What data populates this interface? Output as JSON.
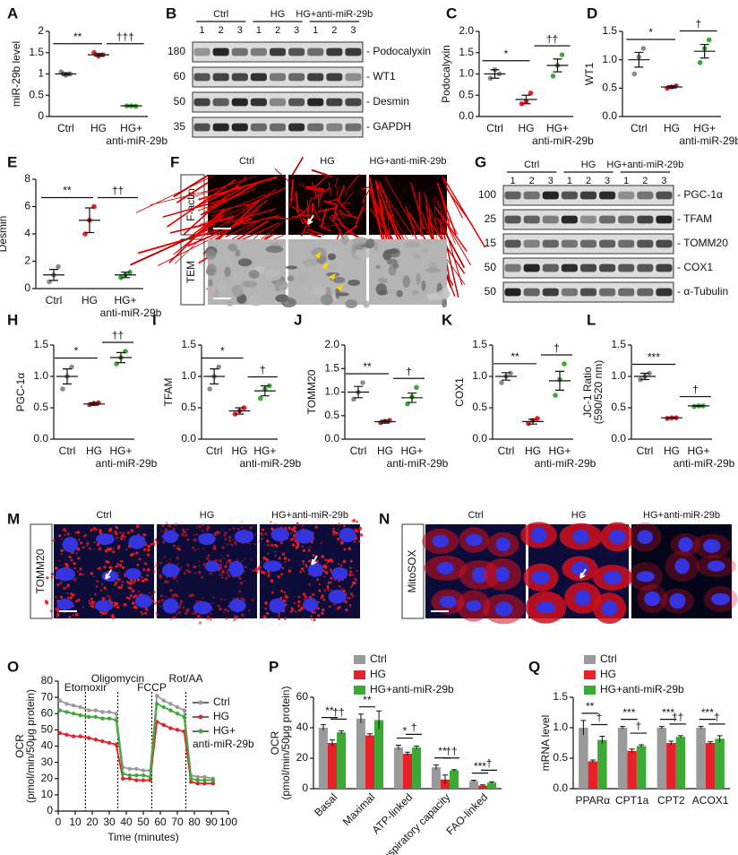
{
  "figure": {
    "B": {
      "panel": "B",
      "groups": [
        "Ctrl",
        "HG",
        "HG+anti-miR-29b"
      ],
      "lanes": [
        "1",
        "2",
        "3"
      ],
      "rows": [
        {
          "mw": "180",
          "label": "- Podocalyxin"
        },
        {
          "mw": "60",
          "label": "- WT1"
        },
        {
          "mw": "50",
          "label": "- Desmin"
        },
        {
          "mw": "35",
          "label": "- GAPDH"
        }
      ]
    },
    "F": {
      "panel": "F",
      "columns": [
        "Ctrl",
        "HG",
        "HG+anti-miR-29b"
      ],
      "rows": [
        "F-actin",
        "TEM"
      ]
    },
    "G": {
      "panel": "G",
      "groups": [
        "Ctrl",
        "HG",
        "HG+anti-miR-29b"
      ],
      "lanes": [
        "1",
        "2",
        "3"
      ],
      "rows": [
        {
          "mw": "100",
          "label": "- PGC-1α"
        },
        {
          "mw": "25",
          "label": "- TFAM"
        },
        {
          "mw": "15",
          "label": "- TOMM20"
        },
        {
          "mw": "50",
          "label": "- COX1"
        },
        {
          "mw": "50",
          "label": "- α-Tubulin"
        }
      ]
    },
    "M": {
      "panel": "M",
      "columns": [
        "Ctrl",
        "HG",
        "HG+anti-miR-29b"
      ],
      "rows": [
        "TOMM20"
      ]
    },
    "N": {
      "panel": "N",
      "columns": [
        "Ctrl",
        "HG",
        "HG+anti-miR-29b"
      ],
      "rows": [
        "MitoSOX"
      ]
    }
  },
  "chart_data": [
    {
      "panel": "A",
      "type": "dot",
      "ylabel": "miR-29b level",
      "categories": [
        "Ctrl",
        "HG",
        "HG+"
      ],
      "xlabel2": "anti-miR-29b",
      "groups": [
        {
          "color": "#8c8c8c",
          "values": [
            1.05,
            0.97,
            1.0
          ],
          "mean": 1.0,
          "sem": 0.03
        },
        {
          "color": "#e8202a",
          "values": [
            1.5,
            1.42,
            1.45
          ],
          "mean": 1.45,
          "sem": 0.03
        },
        {
          "color": "#3aaa35",
          "values": [
            0.25,
            0.25,
            0.24
          ],
          "mean": 0.25,
          "sem": 0.005
        }
      ],
      "ylim": [
        0,
        2
      ],
      "yticks": [
        0,
        0.5,
        1,
        1.5,
        2
      ],
      "annotations": [
        "**",
        "†††"
      ]
    },
    {
      "panel": "C",
      "type": "dot",
      "ylabel": "Podocalyxin",
      "categories": [
        "Ctrl",
        "HG",
        "HG+"
      ],
      "xlabel2": "anti-miR-29b",
      "groups": [
        {
          "color": "#8c8c8c",
          "values": [
            0.9,
            1.1,
            1.0
          ],
          "mean": 1.0,
          "sem": 0.1
        },
        {
          "color": "#e8202a",
          "values": [
            0.3,
            0.35,
            0.55
          ],
          "mean": 0.4,
          "sem": 0.1
        },
        {
          "color": "#3aaa35",
          "values": [
            0.95,
            1.2,
            1.45
          ],
          "mean": 1.2,
          "sem": 0.15
        }
      ],
      "ylim": [
        0,
        2
      ],
      "yticks": [
        {
          "value": 0,
          "label": "0.0"
        },
        0.5,
        {
          "value": 1,
          "label": "1.0"
        },
        1.5,
        {
          "value": 2,
          "label": "2.0"
        }
      ],
      "annotations": [
        "*",
        "††"
      ]
    },
    {
      "panel": "D",
      "type": "dot",
      "ylabel": "WT1",
      "categories": [
        "Ctrl",
        "HG",
        "HG+"
      ],
      "xlabel2": "anti-miR-29b",
      "groups": [
        {
          "color": "#8c8c8c",
          "values": [
            0.75,
            1.05,
            1.2
          ],
          "mean": 1.0,
          "sem": 0.13
        },
        {
          "color": "#e8202a",
          "values": [
            0.5,
            0.52,
            0.54
          ],
          "mean": 0.52,
          "sem": 0.02
        },
        {
          "color": "#3aaa35",
          "values": [
            0.95,
            1.2,
            1.35
          ],
          "mean": 1.15,
          "sem": 0.12
        }
      ],
      "ylim": [
        0,
        1.5
      ],
      "yticks": [
        {
          "value": 0,
          "label": "0.0"
        },
        0.5,
        {
          "value": 1,
          "label": "1.0"
        },
        1.5
      ],
      "annotations": [
        "*",
        "†"
      ]
    },
    {
      "panel": "E",
      "type": "dot",
      "ylabel": "Desmin",
      "categories": [
        "Ctrl",
        "HG",
        "HG+"
      ],
      "xlabel2": "anti-miR-29b",
      "groups": [
        {
          "color": "#8c8c8c",
          "values": [
            0.5,
            1.0,
            1.6
          ],
          "mean": 1.0,
          "sem": 0.4
        },
        {
          "color": "#e8202a",
          "values": [
            4.0,
            5.0,
            6.0
          ],
          "mean": 5.0,
          "sem": 0.9
        },
        {
          "color": "#3aaa35",
          "values": [
            0.8,
            1.0,
            1.2
          ],
          "mean": 1.0,
          "sem": 0.2
        }
      ],
      "ylim": [
        0,
        8
      ],
      "yticks": [
        0,
        2,
        4,
        6,
        8
      ],
      "annotations": [
        "**",
        "††"
      ]
    },
    {
      "panel": "H",
      "type": "dot",
      "ylabel": "PGC-1α",
      "categories": [
        "Ctrl",
        "HG",
        "HG+"
      ],
      "xlabel2": "anti-miR-29b",
      "groups": [
        {
          "color": "#8c8c8c",
          "values": [
            0.8,
            1.0,
            1.15
          ],
          "mean": 1.0,
          "sem": 0.12
        },
        {
          "color": "#e8202a",
          "values": [
            0.55,
            0.57,
            0.58
          ],
          "mean": 0.56,
          "sem": 0.02
        },
        {
          "color": "#3aaa35",
          "values": [
            1.2,
            1.3,
            1.4
          ],
          "mean": 1.3,
          "sem": 0.08
        }
      ],
      "ylim": [
        0,
        1.5
      ],
      "yticks": [
        {
          "value": 0,
          "label": "0.0"
        },
        0.5,
        {
          "value": 1,
          "label": "1.0"
        },
        1.5
      ],
      "annotations": [
        "*",
        "††"
      ]
    },
    {
      "panel": "I",
      "type": "dot",
      "ylabel": "TFAM",
      "categories": [
        "Ctrl",
        "HG",
        "HG+"
      ],
      "xlabel2": "anti-miR-29b",
      "groups": [
        {
          "color": "#8c8c8c",
          "values": [
            0.8,
            1.0,
            1.15
          ],
          "mean": 1.0,
          "sem": 0.12
        },
        {
          "color": "#e8202a",
          "values": [
            0.4,
            0.45,
            0.5
          ],
          "mean": 0.45,
          "sem": 0.05
        },
        {
          "color": "#3aaa35",
          "values": [
            0.65,
            0.8,
            0.85
          ],
          "mean": 0.77,
          "sem": 0.08
        }
      ],
      "ylim": [
        0,
        1.5
      ],
      "yticks": [
        {
          "value": 0,
          "label": "0.0"
        },
        0.5,
        {
          "value": 1,
          "label": "1.0"
        },
        1.5
      ],
      "annotations": [
        "*",
        "†"
      ]
    },
    {
      "panel": "J",
      "type": "dot",
      "ylabel": "TOMM20",
      "categories": [
        "Ctrl",
        "HG",
        "HG+"
      ],
      "xlabel2": "anti-miR-29b",
      "groups": [
        {
          "color": "#8c8c8c",
          "values": [
            0.85,
            1.0,
            1.2
          ],
          "mean": 1.0,
          "sem": 0.12
        },
        {
          "color": "#e8202a",
          "values": [
            0.35,
            0.38,
            0.4
          ],
          "mean": 0.37,
          "sem": 0.03
        },
        {
          "color": "#3aaa35",
          "values": [
            0.75,
            0.9,
            1.1
          ],
          "mean": 0.88,
          "sem": 0.1
        }
      ],
      "ylim": [
        0,
        2
      ],
      "yticks": [
        {
          "value": 0,
          "label": "0.0"
        },
        0.5,
        {
          "value": 1,
          "label": "1.0"
        },
        1.5,
        {
          "value": 2,
          "label": "2.0"
        }
      ],
      "annotations": [
        "**",
        "†"
      ]
    },
    {
      "panel": "K",
      "type": "dot",
      "ylabel": "COX1",
      "categories": [
        "Ctrl",
        "HG",
        "HG+"
      ],
      "xlabel2": "anti-miR-29b",
      "groups": [
        {
          "color": "#8c8c8c",
          "values": [
            0.9,
            1.0,
            1.05
          ],
          "mean": 1.0,
          "sem": 0.06
        },
        {
          "color": "#e8202a",
          "values": [
            0.25,
            0.3,
            0.33
          ],
          "mean": 0.28,
          "sem": 0.04
        },
        {
          "color": "#3aaa35",
          "values": [
            0.7,
            0.95,
            1.2
          ],
          "mean": 0.93,
          "sem": 0.15
        }
      ],
      "ylim": [
        0,
        1.5
      ],
      "yticks": [
        {
          "value": 0,
          "label": "0.0"
        },
        0.5,
        {
          "value": 1,
          "label": "1.0"
        },
        1.5
      ],
      "annotations": [
        "**",
        "†"
      ]
    },
    {
      "panel": "L",
      "type": "dot",
      "ylabel": "JC-1 Ratio",
      "ylabel2": "(590/520 nm)",
      "categories": [
        "Ctrl",
        "HG",
        "HG+"
      ],
      "xlabel2": "anti-miR-29b",
      "groups": [
        {
          "color": "#8c8c8c",
          "values": [
            0.95,
            1.0,
            1.05
          ],
          "mean": 1.0,
          "sem": 0.05
        },
        {
          "color": "#e8202a",
          "values": [
            0.33,
            0.34,
            0.34
          ],
          "mean": 0.34,
          "sem": 0.005
        },
        {
          "color": "#3aaa35",
          "values": [
            0.52,
            0.53,
            0.53
          ],
          "mean": 0.53,
          "sem": 0.005
        }
      ],
      "ylim": [
        0,
        1.5
      ],
      "yticks": [
        {
          "value": 0,
          "label": "0.0"
        },
        0.5,
        {
          "value": 1,
          "label": "1.0"
        },
        1.5
      ],
      "annotations": [
        "***",
        "†"
      ]
    },
    {
      "panel": "O",
      "type": "line",
      "ylabel": "OCR",
      "ylabel2": "(pmol/min/50μg protein)",
      "xlabel": "Time (minutes)",
      "x": [
        1,
        5,
        9,
        13,
        18,
        22,
        26,
        30,
        34,
        38,
        42,
        46,
        50,
        54,
        58,
        62,
        66,
        70,
        74,
        78,
        82,
        86,
        91
      ],
      "series": [
        {
          "name": "Ctrl",
          "color": "#999999",
          "values": [
            68,
            66,
            65,
            64,
            62,
            62,
            61,
            61,
            60,
            27,
            26,
            26,
            25,
            25,
            71,
            68,
            66,
            64,
            62,
            22,
            21,
            21,
            20
          ]
        },
        {
          "name": "HG",
          "color": "#e8202a",
          "values": [
            48,
            47,
            46,
            46,
            45,
            44,
            43,
            42,
            41,
            20,
            20,
            19,
            19,
            19,
            55,
            53,
            51,
            50,
            49,
            18,
            17,
            17,
            17
          ]
        },
        {
          "name": "HG+",
          "color": "#3aaa35",
          "values": [
            62,
            61,
            60,
            59,
            58,
            58,
            57,
            57,
            56,
            23,
            22,
            22,
            22,
            21,
            66,
            64,
            62,
            60,
            58,
            20,
            19,
            19,
            19
          ]
        }
      ],
      "legend_line2": "anti-miR-29b",
      "events": [
        {
          "x": 16,
          "label": "Etomoxir"
        },
        {
          "x": 35,
          "label": "Oligomycin"
        },
        {
          "x": 55,
          "label": "FCCP"
        },
        {
          "x": 75,
          "label": "Rot/AA"
        }
      ],
      "xlim": [
        0,
        100
      ],
      "xticks": [
        0,
        10,
        20,
        30,
        40,
        50,
        60,
        70,
        80,
        90,
        100
      ],
      "ylim": [
        0,
        80
      ],
      "yticks": [
        0,
        10,
        20,
        30,
        40,
        50,
        60,
        70,
        80
      ]
    },
    {
      "panel": "P",
      "type": "bar",
      "ylabel": "OCR",
      "ylabel2": "(pmol/min/50μg protein)",
      "categories": [
        "Basal",
        "Maximal",
        "ATP-linked",
        "Spare respiratory capacity",
        "FAO-linked"
      ],
      "xtick_rotation": 45,
      "series": [
        {
          "name": "Ctrl",
          "color": "#9a9a9a",
          "values": [
            40,
            46,
            27,
            14,
            5
          ],
          "errors": [
            2,
            3,
            1.5,
            1.5,
            0.5
          ]
        },
        {
          "name": "HG",
          "color": "#e8202a",
          "values": [
            30,
            35,
            23,
            6,
            2
          ],
          "errors": [
            2,
            1,
            1,
            3,
            0.5
          ]
        },
        {
          "name": "HG+anti-miR-29b",
          "color": "#3aaa35",
          "values": [
            37,
            45,
            27,
            12,
            4
          ],
          "errors": [
            1,
            6,
            1,
            0.5,
            0.5
          ]
        }
      ],
      "legend": "upper right",
      "annotations": [
        {
          "category": 0,
          "between": [
            0,
            1
          ],
          "text": "**"
        },
        {
          "category": 0,
          "between": [
            1,
            2
          ],
          "text": "††"
        },
        {
          "category": 1,
          "between": [
            0,
            1
          ],
          "text": "**"
        },
        {
          "category": 2,
          "between": [
            0,
            1
          ],
          "text": "*"
        },
        {
          "category": 2,
          "between": [
            1,
            2
          ],
          "text": "†"
        },
        {
          "category": 3,
          "between": [
            0,
            1
          ],
          "text": "**"
        },
        {
          "category": 3,
          "between": [
            1,
            2
          ],
          "text": "††"
        },
        {
          "category": 4,
          "between": [
            0,
            1
          ],
          "text": "***"
        },
        {
          "category": 4,
          "between": [
            1,
            2
          ],
          "text": "†"
        }
      ],
      "ylim": [
        0,
        60
      ],
      "yticks": [
        0,
        20,
        40,
        60
      ]
    },
    {
      "panel": "Q",
      "type": "bar",
      "ylabel": "mRNA level",
      "categories": [
        "PPARα",
        "CPT1a",
        "CPT2",
        "ACOX1"
      ],
      "series": [
        {
          "name": "Ctrl",
          "color": "#9a9a9a",
          "values": [
            1.0,
            1.0,
            1.0,
            1.0
          ],
          "errors": [
            0.12,
            0.02,
            0.02,
            0.02
          ]
        },
        {
          "name": "HG",
          "color": "#e8202a",
          "values": [
            0.45,
            0.62,
            0.75,
            0.75
          ],
          "errors": [
            0.02,
            0.03,
            0.03,
            0.02
          ]
        },
        {
          "name": "HG+anti-miR-29b",
          "color": "#3aaa35",
          "values": [
            0.8,
            0.7,
            0.85,
            0.82
          ],
          "errors": [
            0.06,
            0.02,
            0.02,
            0.05
          ]
        }
      ],
      "legend": "upper left",
      "annotations": [
        {
          "category": 0,
          "between": [
            0,
            1
          ],
          "text": "**"
        },
        {
          "category": 0,
          "between": [
            1,
            2
          ],
          "text": "†"
        },
        {
          "category": 1,
          "between": [
            0,
            1
          ],
          "text": "***"
        },
        {
          "category": 1,
          "between": [
            1,
            2
          ],
          "text": "†"
        },
        {
          "category": 2,
          "between": [
            0,
            1
          ],
          "text": "***"
        },
        {
          "category": 2,
          "between": [
            1,
            2
          ],
          "text": "††"
        },
        {
          "category": 3,
          "between": [
            0,
            1
          ],
          "text": "***"
        },
        {
          "category": 3,
          "between": [
            1,
            2
          ],
          "text": "†"
        }
      ],
      "ylim": [
        0,
        1.5
      ],
      "yticks": [
        {
          "value": 0,
          "label": "0.0"
        },
        0.5,
        {
          "value": 1,
          "label": "1.0"
        },
        1.5
      ]
    }
  ]
}
